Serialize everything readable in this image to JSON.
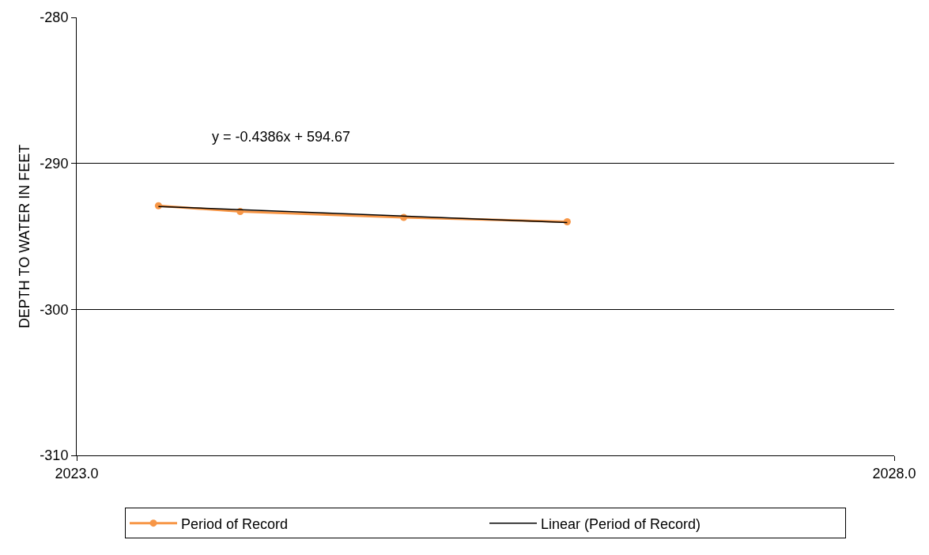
{
  "chart_data": {
    "type": "line",
    "ylabel": "DEPTH TO WATER IN FEET",
    "xlim": [
      2023.0,
      2028.0
    ],
    "xticks": [
      {
        "value": 2023.0,
        "label": "2023.0"
      },
      {
        "value": 2028.0,
        "label": "2028.0"
      }
    ],
    "ylim": [
      -310,
      -280
    ],
    "yticks": [
      -310,
      -300,
      -290,
      -280
    ],
    "grid": "y",
    "legend": "bottom",
    "series": [
      {
        "name": "Period of Record",
        "color": "#f79646",
        "x": [
          2023.5,
          2024.0,
          2025.0,
          2026.0
        ],
        "values": [
          -292.9,
          -293.3,
          -293.7,
          -294.0
        ],
        "marker": "circle"
      },
      {
        "name": "Linear (Period of Record)",
        "color": "#000000",
        "x": [
          2023.5,
          2026.0
        ],
        "values": [
          -292.95,
          -294.05
        ],
        "marker": "none"
      }
    ],
    "annotations": [
      "y = -0.4386x + 594.67"
    ]
  }
}
